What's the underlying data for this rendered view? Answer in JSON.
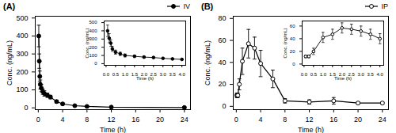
{
  "chart_data": [
    {
      "type": "line",
      "title": "(A)",
      "x_label": "Time (h)",
      "y_label": "Conc. (ng/mL)",
      "xlim": [
        -0.5,
        25
      ],
      "ylim": [
        -10,
        510
      ],
      "xticks": [
        0,
        4,
        8,
        12,
        16,
        20,
        24
      ],
      "yticks": [
        0,
        100,
        200,
        300,
        400,
        500
      ],
      "grid": false,
      "legend": "upper right",
      "x": [
        0.083,
        0.167,
        0.25,
        0.333,
        0.5,
        0.75,
        1.0,
        1.5,
        2.0,
        3.0,
        4.0,
        6.0,
        8.0,
        12.0,
        24.0
      ],
      "series": [
        {
          "name": "IV",
          "color": "black",
          "marker": "circle",
          "line_style": "solid",
          "values": [
            400,
            260,
            175,
            130,
            110,
            90,
            80,
            70,
            60,
            35,
            22,
            12,
            8,
            4,
            2
          ],
          "errors": [
            60,
            40,
            30,
            25,
            20,
            15,
            15,
            12,
            10,
            8,
            6,
            4,
            3,
            2,
            1
          ]
        }
      ]
    },
    {
      "type": "line",
      "x_label": "Time (h)",
      "y_label": "Conc. (ng/mL)",
      "xlim": [
        -0.1,
        4.2
      ],
      "ylim": [
        -20,
        520
      ],
      "xticks": [
        {
          "value": 0,
          "label": "0.0"
        },
        0.5,
        {
          "value": 1,
          "label": "1.0"
        },
        1.5,
        {
          "value": 2,
          "label": "2.0"
        },
        2.5,
        {
          "value": 3,
          "label": "3.0"
        },
        3.5,
        {
          "value": 4,
          "label": "4.0"
        }
      ],
      "yticks": [
        0,
        100,
        200,
        300,
        400,
        500
      ],
      "grid": false,
      "x": [
        0.083,
        0.167,
        0.25,
        0.333,
        0.5,
        0.75,
        1.0,
        1.5,
        2.0,
        2.5,
        3.0,
        3.5,
        4.0
      ],
      "series": [
        {
          "color": "black",
          "marker": "circle",
          "line_style": "solid",
          "values": [
            400,
            310,
            250,
            180,
            140,
            120,
            100,
            90,
            80,
            75,
            65,
            58,
            52
          ],
          "errors": [
            70,
            55,
            40,
            30,
            25,
            20,
            18,
            15,
            12,
            10,
            8,
            8,
            7
          ]
        }
      ]
    },
    {
      "type": "line",
      "title": "(B)",
      "x_label": "Time (h)",
      "y_label": "Conc. (ng/mL)",
      "xlim": [
        -0.5,
        25
      ],
      "ylim": [
        -3,
        82
      ],
      "xticks": [
        0,
        4,
        8,
        12,
        16,
        20,
        24
      ],
      "yticks": [
        0,
        20,
        40,
        60,
        80
      ],
      "grid": false,
      "legend": "upper right",
      "x": [
        0.083,
        0.167,
        0.25,
        0.5,
        1.0,
        2.0,
        3.0,
        4.0,
        6.0,
        8.0,
        12.0,
        16.0,
        20.0,
        24.0
      ],
      "series": [
        {
          "name": "IP",
          "color": "black",
          "marker": "open_circle",
          "line_style": "solid",
          "values": [
            10,
            10,
            10,
            20,
            41,
            57,
            53,
            39,
            25,
            5,
            4,
            5,
            3,
            3
          ],
          "errors": [
            2,
            2,
            2,
            5,
            12,
            13,
            10,
            12,
            8,
            2,
            2,
            3,
            1,
            1
          ]
        }
      ]
    },
    {
      "type": "line",
      "x_label": "Time (h)",
      "y_label": "Conc. (ng/mL)",
      "xlim": [
        -0.1,
        4.2
      ],
      "ylim": [
        -2,
        68
      ],
      "xticks": [
        {
          "value": 0,
          "label": "0.0"
        },
        0.5,
        {
          "value": 1,
          "label": "1.0"
        },
        1.5,
        {
          "value": 2,
          "label": "2.0"
        },
        2.5,
        {
          "value": 3,
          "label": "3.0"
        },
        3.5,
        {
          "value": 4,
          "label": "4.0"
        }
      ],
      "yticks": [
        0,
        20,
        40,
        60
      ],
      "grid": false,
      "x": [
        0.083,
        0.25,
        0.5,
        1.0,
        1.5,
        2.0,
        2.5,
        3.0,
        3.5,
        4.0
      ],
      "series": [
        {
          "color": "black",
          "marker": "open_circle",
          "line_style": "solid",
          "values": [
            12,
            12,
            20,
            42,
            47,
            57,
            55,
            52,
            47,
            40
          ],
          "errors": [
            2,
            2,
            5,
            8,
            8,
            8,
            8,
            8,
            8,
            8
          ]
        }
      ]
    }
  ]
}
